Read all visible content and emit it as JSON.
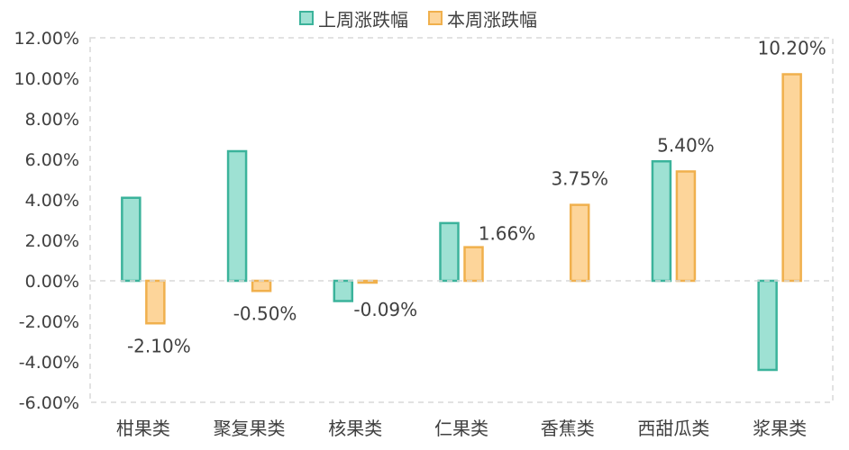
{
  "chart_data": {
    "type": "bar",
    "categories": [
      "柑果类",
      "聚复果类",
      "核果类",
      "仁果类",
      "香蕉类",
      "西甜瓜类",
      "浆果类"
    ],
    "series": [
      {
        "name": "上周涨跌幅",
        "values": [
          4.1,
          6.4,
          -1.0,
          2.85,
          0.0,
          5.9,
          -4.4
        ],
        "color": "#9ee1d3",
        "stroke": "#3bb39b"
      },
      {
        "name": "本周涨跌幅",
        "values": [
          -2.1,
          -0.5,
          -0.09,
          1.66,
          3.75,
          5.4,
          10.2
        ],
        "color": "#fdd59a",
        "stroke": "#f0b04d"
      }
    ],
    "data_labels": [
      "-2.10%",
      "-0.50%",
      "-0.09%",
      "1.66%",
      "3.75%",
      "5.40%",
      "10.20%"
    ],
    "y_ticks": [
      "-6.00%",
      "-4.00%",
      "-2.00%",
      "0.00%",
      "2.00%",
      "4.00%",
      "6.00%",
      "8.00%",
      "10.00%",
      "12.00%"
    ],
    "ylim": [
      -6,
      12
    ],
    "legend_position": "top",
    "grid": false
  }
}
